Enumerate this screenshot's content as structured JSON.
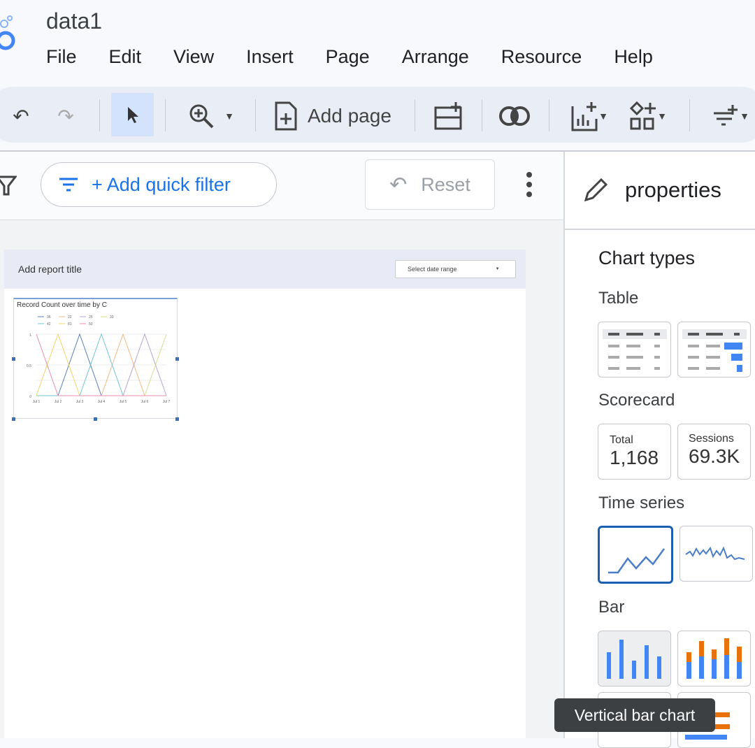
{
  "app": {
    "title": "data1",
    "logo": "looker-studio-logo"
  },
  "menu": [
    "File",
    "Edit",
    "View",
    "Insert",
    "Page",
    "Arrange",
    "Resource",
    "Help"
  ],
  "toolbar": {
    "add_page": "Add page",
    "icons": [
      "undo-icon",
      "redo-icon",
      "select-icon",
      "zoom-icon",
      "add-page-icon",
      "add-data-icon",
      "blend-icon",
      "add-chart-icon",
      "add-control-icon",
      "filter-add-icon"
    ]
  },
  "filterbar": {
    "add_quick_filter": "+ Add quick filter",
    "reset": "Reset"
  },
  "report": {
    "title": "Add report title",
    "date_range": "Select date range"
  },
  "chart_data": {
    "type": "line",
    "title": "Record Count over time by C",
    "categories": [
      "Jul 1",
      "Jul 2",
      "Jul 3",
      "Jul 4",
      "Jul 5",
      "Jul 6",
      "Jul 7"
    ],
    "yticks": [
      "0",
      "0.5",
      "1"
    ],
    "ylim": [
      0,
      1
    ],
    "grid": true,
    "legend": "top",
    "series": [
      {
        "name": "36",
        "color": "#5b7fb8",
        "values": [
          0,
          0,
          1,
          0,
          0,
          0,
          0
        ]
      },
      {
        "name": "22",
        "color": "#f3b983",
        "values": [
          0,
          0,
          0,
          0,
          1,
          0,
          0
        ]
      },
      {
        "name": "25",
        "color": "#b8a2d4",
        "values": [
          0,
          0,
          0,
          0,
          0,
          1,
          0
        ]
      },
      {
        "name": "33",
        "color": "#dcdc8e",
        "values": [
          0,
          0,
          0,
          0,
          0,
          0,
          1
        ]
      },
      {
        "name": "42",
        "color": "#6fc6d6",
        "values": [
          0,
          0,
          0,
          1,
          0,
          0,
          0
        ]
      },
      {
        "name": "81",
        "color": "#f2d46a",
        "values": [
          0,
          1,
          0,
          0,
          0,
          0,
          0
        ]
      },
      {
        "name": "50",
        "color": "#e98fb0",
        "values": [
          1,
          0,
          0,
          0,
          0,
          0,
          0
        ]
      }
    ]
  },
  "properties": {
    "header": "properties",
    "chart_types": "Chart types",
    "table": "Table",
    "scorecard": "Scorecard",
    "scorecards": [
      {
        "label": "Total",
        "value": "1,168"
      },
      {
        "label": "Sessions",
        "value": "69.3K"
      }
    ],
    "time_series": "Time series",
    "bar": "Bar"
  },
  "tooltip": "Vertical bar chart"
}
